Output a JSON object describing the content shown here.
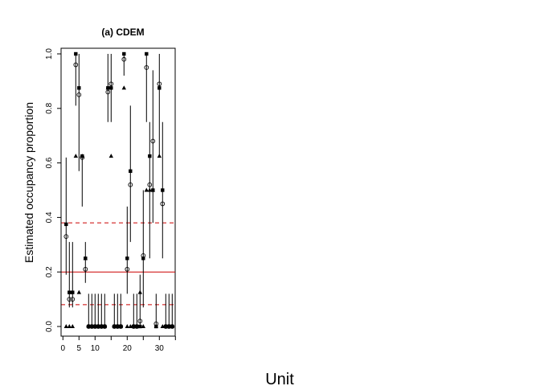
{
  "chart_data": {
    "type": "scatter",
    "title": "(a) CDEM",
    "xlabel": "Unit",
    "ylabel": "Estimated occupancy proportion",
    "xlim": [
      0,
      35
    ],
    "ylim": [
      0,
      1
    ],
    "x_ticks": [
      0,
      5,
      10,
      20,
      30
    ],
    "x_tick_labels": [
      "0",
      "5",
      "10",
      "20",
      "30"
    ],
    "y_ticks": [
      0,
      0.2,
      0.4,
      0.6,
      0.8,
      1.0
    ],
    "y_tick_labels": [
      "0.0",
      "0.2",
      "0.4",
      "0.6",
      "0.8",
      "1.0"
    ],
    "grid": false,
    "reference_lines": [
      {
        "y": 0.2,
        "style": "solid",
        "color": "#cc0000"
      },
      {
        "y": 0.38,
        "style": "dashed",
        "color": "#cc0000"
      },
      {
        "y": 0.08,
        "style": "dashed",
        "color": "#cc0000"
      }
    ],
    "intervals": [
      {
        "x": 1,
        "lo": 0.19,
        "hi": 0.62
      },
      {
        "x": 2,
        "lo": 0.07,
        "hi": 0.31
      },
      {
        "x": 3,
        "lo": 0.07,
        "hi": 0.31
      },
      {
        "x": 4,
        "lo": 0.81,
        "hi": 1.0
      },
      {
        "x": 5,
        "lo": 0.57,
        "hi": 1.0
      },
      {
        "x": 6,
        "lo": 0.44,
        "hi": 0.63
      },
      {
        "x": 7,
        "lo": 0.16,
        "hi": 0.31
      },
      {
        "x": 8,
        "lo": 0.0,
        "hi": 0.12
      },
      {
        "x": 9,
        "lo": 0.0,
        "hi": 0.12
      },
      {
        "x": 10,
        "lo": 0.0,
        "hi": 0.12
      },
      {
        "x": 11,
        "lo": 0.0,
        "hi": 0.12
      },
      {
        "x": 12,
        "lo": 0.0,
        "hi": 0.12
      },
      {
        "x": 13,
        "lo": 0.0,
        "hi": 0.12
      },
      {
        "x": 14,
        "lo": 0.75,
        "hi": 1.0
      },
      {
        "x": 15,
        "lo": 0.75,
        "hi": 1.0
      },
      {
        "x": 16,
        "lo": 0.0,
        "hi": 0.12
      },
      {
        "x": 17,
        "lo": 0.0,
        "hi": 0.12
      },
      {
        "x": 18,
        "lo": 0.0,
        "hi": 0.12
      },
      {
        "x": 19,
        "lo": 0.92,
        "hi": 1.0
      },
      {
        "x": 20,
        "lo": 0.12,
        "hi": 0.44
      },
      {
        "x": 21,
        "lo": 0.31,
        "hi": 0.81
      },
      {
        "x": 22,
        "lo": 0.0,
        "hi": 0.12
      },
      {
        "x": 23,
        "lo": 0.0,
        "hi": 0.12
      },
      {
        "x": 24,
        "lo": 0.0,
        "hi": 0.19
      },
      {
        "x": 25,
        "lo": 0.07,
        "hi": 0.5
      },
      {
        "x": 26,
        "lo": 0.75,
        "hi": 1.0
      },
      {
        "x": 27,
        "lo": 0.25,
        "hi": 0.75
      },
      {
        "x": 28,
        "lo": 0.38,
        "hi": 0.94
      },
      {
        "x": 29,
        "lo": 0.0,
        "hi": 0.12
      },
      {
        "x": 30,
        "lo": 0.62,
        "hi": 1.0
      },
      {
        "x": 31,
        "lo": 0.25,
        "hi": 0.75
      },
      {
        "x": 32,
        "lo": 0.0,
        "hi": 0.12
      },
      {
        "x": 33,
        "lo": 0.0,
        "hi": 0.12
      },
      {
        "x": 34,
        "lo": 0.0,
        "hi": 0.12
      }
    ],
    "series": [
      {
        "marker": "circle",
        "points": [
          [
            1,
            0.33
          ],
          [
            2,
            0.1
          ],
          [
            3,
            0.1
          ],
          [
            4,
            0.96
          ],
          [
            5,
            0.85
          ],
          [
            6,
            0.62
          ],
          [
            7,
            0.21
          ],
          [
            8,
            0.0
          ],
          [
            9,
            0.0
          ],
          [
            10,
            0.0
          ],
          [
            11,
            0.0
          ],
          [
            12,
            0.0
          ],
          [
            13,
            0.0
          ],
          [
            14,
            0.86
          ],
          [
            15,
            0.89
          ],
          [
            16,
            0.0
          ],
          [
            17,
            0.0
          ],
          [
            18,
            0.0
          ],
          [
            19,
            0.98
          ],
          [
            20,
            0.21
          ],
          [
            21,
            0.52
          ],
          [
            22,
            0.0
          ],
          [
            23,
            0.0
          ],
          [
            24,
            0.02
          ],
          [
            25,
            0.26
          ],
          [
            26,
            0.95
          ],
          [
            27,
            0.52
          ],
          [
            28,
            0.68
          ],
          [
            29,
            0.01
          ],
          [
            30,
            0.89
          ],
          [
            31,
            0.45
          ],
          [
            32,
            0.0
          ],
          [
            33,
            0.0
          ],
          [
            34,
            0.0
          ]
        ]
      },
      {
        "marker": "square",
        "points": [
          [
            1,
            0.375
          ],
          [
            2,
            0.125
          ],
          [
            3,
            0.125
          ],
          [
            4,
            1.0
          ],
          [
            5,
            0.875
          ],
          [
            6,
            0.625
          ],
          [
            7,
            0.25
          ],
          [
            8,
            0.0
          ],
          [
            9,
            0.0
          ],
          [
            10,
            0.0
          ],
          [
            11,
            0.0
          ],
          [
            12,
            0.0
          ],
          [
            13,
            0.0
          ],
          [
            14,
            0.875
          ],
          [
            15,
            0.875
          ],
          [
            16,
            0.0
          ],
          [
            17,
            0.0
          ],
          [
            18,
            0.0
          ],
          [
            19,
            1.0
          ],
          [
            20,
            0.25
          ],
          [
            21,
            0.57
          ],
          [
            22,
            0.0
          ],
          [
            23,
            0.0
          ],
          [
            24,
            0.0
          ],
          [
            25,
            0.25
          ],
          [
            26,
            1.0
          ],
          [
            27,
            0.625
          ],
          [
            28,
            0.5
          ],
          [
            29,
            0.0
          ],
          [
            30,
            0.875
          ],
          [
            31,
            0.5
          ],
          [
            32,
            0.0
          ],
          [
            33,
            0.0
          ],
          [
            34,
            0.0
          ]
        ]
      },
      {
        "marker": "triangle",
        "points": [
          [
            1,
            0.0
          ],
          [
            2,
            0.0
          ],
          [
            3,
            0.0
          ],
          [
            4,
            0.625
          ],
          [
            5,
            0.125
          ],
          [
            6,
            0.625
          ],
          [
            7,
            0.25
          ],
          [
            8,
            0.0
          ],
          [
            9,
            0.0
          ],
          [
            10,
            0.0
          ],
          [
            11,
            0.0
          ],
          [
            12,
            0.0
          ],
          [
            13,
            0.0
          ],
          [
            14,
            0.875
          ],
          [
            15,
            0.625
          ],
          [
            16,
            0.0
          ],
          [
            17,
            0.0
          ],
          [
            18,
            0.0
          ],
          [
            19,
            0.875
          ],
          [
            20,
            0.0
          ],
          [
            21,
            0.0
          ],
          [
            22,
            0.0
          ],
          [
            23,
            0.0
          ],
          [
            24,
            0.125
          ],
          [
            25,
            0.0
          ],
          [
            26,
            0.5
          ],
          [
            27,
            0.5
          ],
          [
            28,
            0.5
          ],
          [
            29,
            0.0
          ],
          [
            30,
            0.625
          ],
          [
            31,
            0.0
          ],
          [
            32,
            0.0
          ],
          [
            33,
            0.0
          ],
          [
            34,
            0.0
          ]
        ]
      }
    ]
  }
}
